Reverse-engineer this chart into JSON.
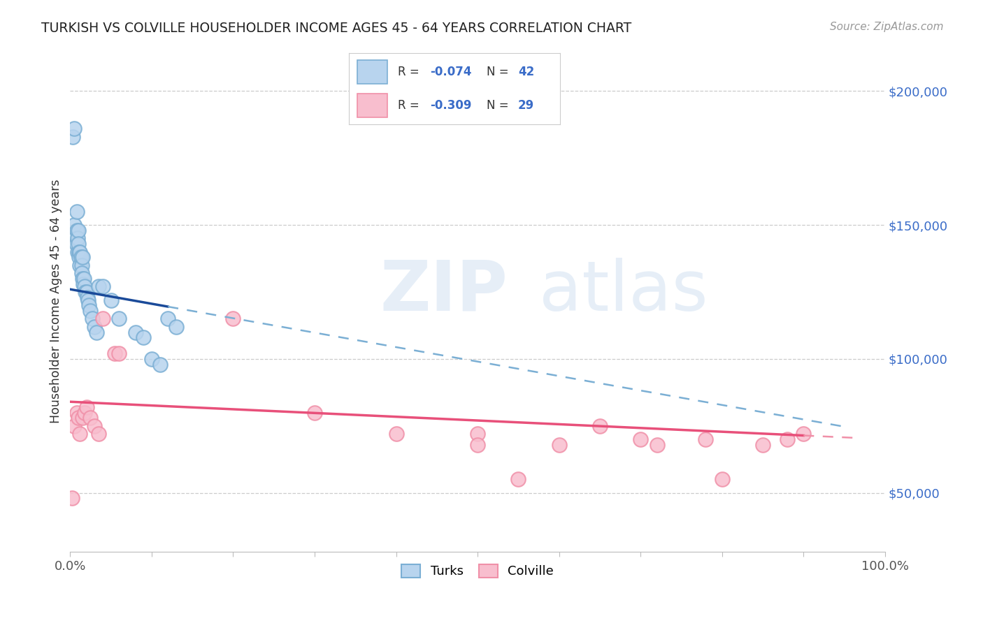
{
  "title": "TURKISH VS COLVILLE HOUSEHOLDER INCOME AGES 45 - 64 YEARS CORRELATION CHART",
  "source": "Source: ZipAtlas.com",
  "ylabel": "Householder Income Ages 45 - 64 years",
  "xlim": [
    0,
    100
  ],
  "ylim": [
    28000,
    215000
  ],
  "yticks": [
    50000,
    100000,
    150000,
    200000
  ],
  "ytick_labels": [
    "$50,000",
    "$100,000",
    "$150,000",
    "$200,000"
  ],
  "xticks": [
    0,
    10,
    20,
    30,
    40,
    50,
    60,
    70,
    80,
    90,
    100
  ],
  "blue_color": "#7bafd4",
  "blue_line_color": "#1a4a99",
  "blue_fill": "#b8d4ee",
  "pink_color": "#f090a8",
  "pink_line_color": "#e8507a",
  "pink_fill": "#f8bece",
  "background_color": "#ffffff",
  "turks_R": -0.074,
  "turks_N": 42,
  "colville_R": -0.309,
  "colville_N": 29,
  "turks_x": [
    0.3,
    0.5,
    0.5,
    0.6,
    0.7,
    0.8,
    0.8,
    0.9,
    0.9,
    1.0,
    1.0,
    1.1,
    1.1,
    1.2,
    1.2,
    1.3,
    1.4,
    1.4,
    1.5,
    1.5,
    1.6,
    1.7,
    1.8,
    1.9,
    2.0,
    2.1,
    2.2,
    2.3,
    2.5,
    2.7,
    3.0,
    3.2,
    3.5,
    4.0,
    5.0,
    6.0,
    8.0,
    9.0,
    10.0,
    11.0,
    12.0,
    13.0
  ],
  "turks_y": [
    183000,
    186000,
    150000,
    145000,
    143000,
    155000,
    148000,
    145000,
    140000,
    148000,
    143000,
    140000,
    138000,
    140000,
    135000,
    138000,
    135000,
    132000,
    138000,
    130000,
    128000,
    130000,
    127000,
    125000,
    125000,
    123000,
    122000,
    120000,
    118000,
    115000,
    112000,
    110000,
    127000,
    127000,
    122000,
    115000,
    110000,
    108000,
    100000,
    98000,
    115000,
    112000
  ],
  "colville_x": [
    0.2,
    0.5,
    0.8,
    1.0,
    1.2,
    1.5,
    1.8,
    2.0,
    2.5,
    3.0,
    3.5,
    4.0,
    5.5,
    6.0,
    20.0,
    30.0,
    40.0,
    50.0,
    50.0,
    55.0,
    60.0,
    65.0,
    70.0,
    72.0,
    78.0,
    80.0,
    85.0,
    88.0,
    90.0
  ],
  "colville_y": [
    48000,
    75000,
    80000,
    78000,
    72000,
    78000,
    80000,
    82000,
    78000,
    75000,
    72000,
    115000,
    102000,
    102000,
    115000,
    80000,
    72000,
    72000,
    68000,
    55000,
    68000,
    75000,
    70000,
    68000,
    70000,
    55000,
    68000,
    70000,
    72000
  ],
  "blue_trendline_x0": 0,
  "blue_trendline_y0": 126000,
  "blue_trendline_x1": 100,
  "blue_trendline_y1": 72000,
  "blue_solid_end_x": 12,
  "pink_trendline_x0": 0,
  "pink_trendline_y0": 84000,
  "pink_trendline_x1": 100,
  "pink_trendline_y1": 70000
}
